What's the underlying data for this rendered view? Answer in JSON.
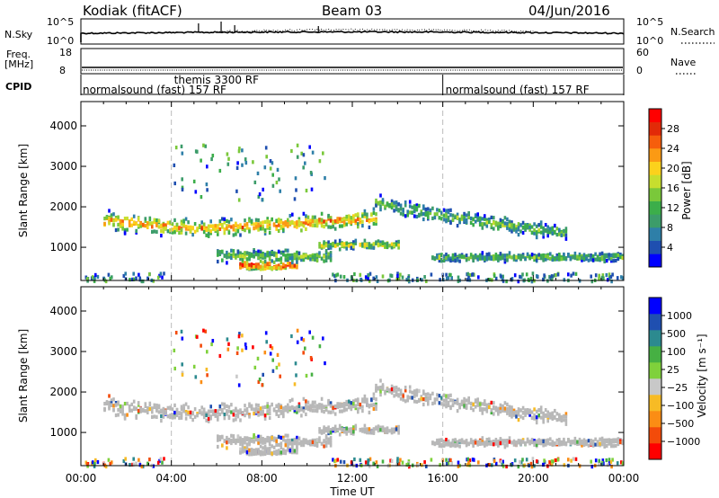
{
  "header": {
    "station": "Kodiak (fitACF)",
    "beam": "Beam 03",
    "date": "04/Jun/2016"
  },
  "ancillary": {
    "nsky_label": "N.Sky",
    "nsky_ticks": [
      "10^5",
      "10^0"
    ],
    "nsearch_label": "N.Search",
    "nsearch_ticks": [
      "10^5",
      "10^0"
    ],
    "freq_label": "Freq.",
    "freq_unit": "[MHz]",
    "freq_ticks": [
      "18",
      "8"
    ],
    "nave_label": "Nave",
    "nave_ticks": [
      "60",
      "0"
    ],
    "cpid_label": "CPID",
    "cpid_segments": [
      {
        "label": "normalsound (fast) 157 RF",
        "start_h": 0,
        "end_h": 16
      },
      {
        "label": "normalsound (fast) 157 RF",
        "start_h": 16,
        "end_h": 24
      }
    ],
    "cpid_event": {
      "label": "themis 3300 RF",
      "start_h": 4
    }
  },
  "chart_data": [
    {
      "type": "heatmap",
      "name": "power-panel",
      "ylabel": "Slant Range [km]",
      "yticks": [
        "4000",
        "3000",
        "2000",
        "1000"
      ],
      "ylim": [
        180,
        4600
      ],
      "xlim": [
        0,
        24
      ],
      "colorbar_label": "Power [dB]",
      "colorbar_ticks": [
        "28",
        "24",
        "20",
        "16",
        "12",
        "8",
        "4"
      ],
      "colorbar_colors": [
        "#0000ff",
        "#1f4fb0",
        "#2e7fa8",
        "#3c9c6a",
        "#3cae4a",
        "#7ac83a",
        "#c7de2e",
        "#fcd11c",
        "#fb9a14",
        "#f65e0c",
        "#e22a08",
        "#ff0000"
      ],
      "bands": [
        {
          "t0": 1.0,
          "t1": 13.0,
          "r_center": [
            1700,
            1600,
            1500,
            1550,
            1600,
            1700,
            1750
          ],
          "width": 280,
          "level": 0.75
        },
        {
          "t0": 13.0,
          "t1": 21.5,
          "r_center": [
            2150,
            1950,
            1800,
            1650,
            1500,
            1400
          ],
          "width": 240,
          "level": 0.4
        },
        {
          "t0": 10.5,
          "t1": 14.0,
          "r_center": [
            1100,
            1100
          ],
          "width": 140,
          "level": 0.55
        },
        {
          "t0": 7.0,
          "t1": 9.5,
          "r_center": [
            600,
            600
          ],
          "width": 160,
          "level": 0.95
        },
        {
          "t0": 6.0,
          "t1": 11.0,
          "r_center": [
            850,
            800
          ],
          "width": 200,
          "level": 0.45
        },
        {
          "t0": 15.5,
          "t1": 24.0,
          "r_center": [
            800,
            800
          ],
          "width": 140,
          "level": 0.4
        }
      ]
    },
    {
      "type": "heatmap",
      "name": "velocity-panel",
      "ylabel": "Slant Range [km]",
      "yticks": [
        "4000",
        "3000",
        "2000",
        "1000"
      ],
      "ylim": [
        180,
        4600
      ],
      "xlim": [
        0,
        24
      ],
      "xlabel": "Time UT",
      "xticks": [
        "00:00",
        "04:00",
        "08:00",
        "12:00",
        "16:00",
        "20:00",
        "00:00"
      ],
      "colorbar_label": "Velocity [m s⁻¹]",
      "colorbar_ticks": [
        "1000",
        "500",
        "100",
        "25",
        "−25",
        "−100",
        "−500",
        "−1000"
      ],
      "colorbar_colors": [
        "#ff0000",
        "#f34b0a",
        "#fb8d14",
        "#f7bb25",
        "#c8c8c8",
        "#7fd13b",
        "#46b043",
        "#2c8a8f",
        "#1f4fb0",
        "#0000ff"
      ],
      "ground_scatter_color": "#b8b8b8"
    }
  ]
}
